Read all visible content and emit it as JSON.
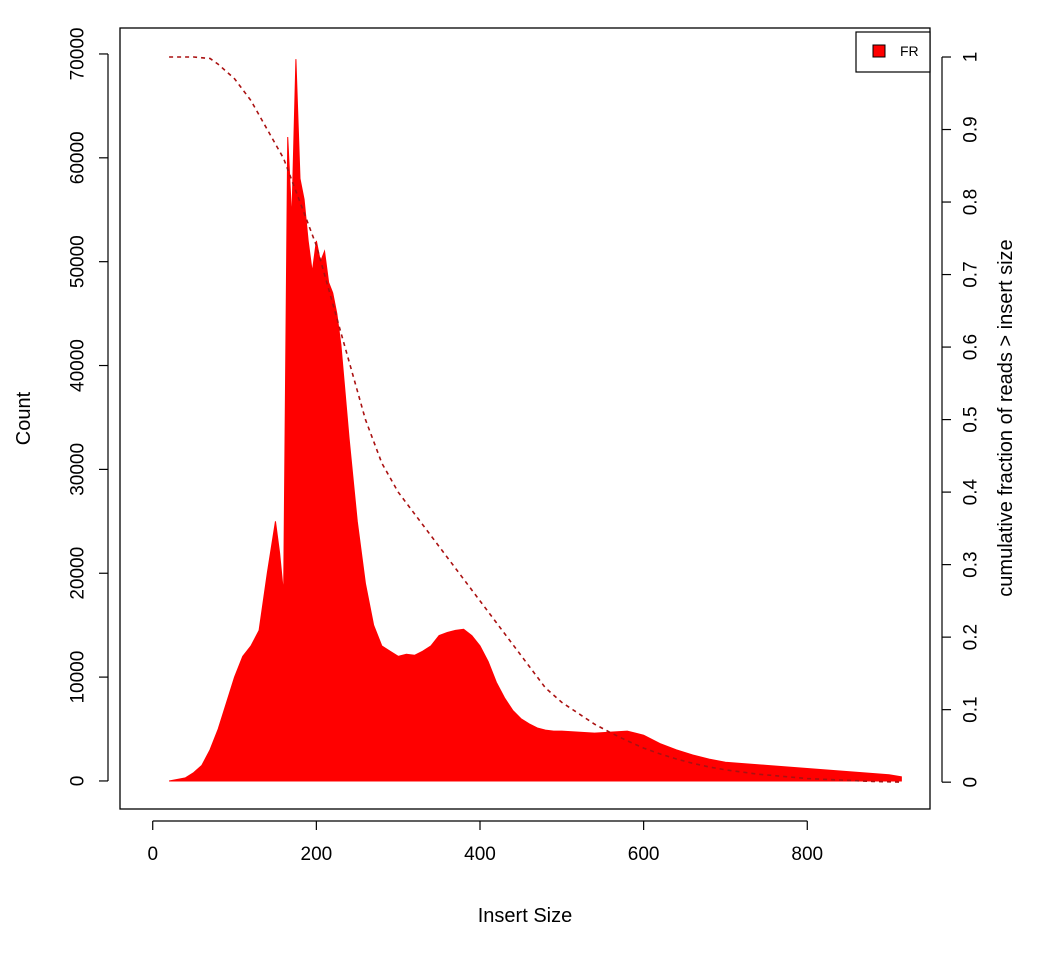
{
  "chart_data": {
    "type": "area",
    "title": "",
    "xlabel": "Insert Size",
    "ylabel": "Count",
    "y2label": "cumulative fraction of reads > insert size",
    "xlim": [
      -40,
      950
    ],
    "ylim": [
      -2700,
      72500
    ],
    "y2lim": [
      -0.037,
      1.04
    ],
    "x_ticks": [
      "0",
      "200",
      "400",
      "600",
      "800"
    ],
    "x_tick_values": [
      0,
      200,
      400,
      600,
      800
    ],
    "y_ticks": [
      "0",
      "10000",
      "20000",
      "30000",
      "40000",
      "50000",
      "60000",
      "70000"
    ],
    "y_tick_values": [
      0,
      10000,
      20000,
      30000,
      40000,
      50000,
      60000,
      70000
    ],
    "y2_ticks": [
      "0",
      "0.1",
      "0.2",
      "0.3",
      "0.4",
      "0.5",
      "0.6",
      "0.7",
      "0.8",
      "0.9",
      "1"
    ],
    "y2_tick_values": [
      0,
      0.1,
      0.2,
      0.3,
      0.4,
      0.5,
      0.6,
      0.7,
      0.8,
      0.9,
      1
    ],
    "legend": {
      "position": "top-right",
      "entries": [
        "FR"
      ]
    },
    "grid": false,
    "series": [
      {
        "name": "FR",
        "kind": "histogram",
        "color": "#ff0000",
        "x": [
          20,
          40,
          50,
          60,
          70,
          80,
          90,
          100,
          110,
          120,
          130,
          140,
          150,
          155,
          160,
          165,
          170,
          175,
          180,
          185,
          190,
          195,
          200,
          205,
          210,
          215,
          220,
          225,
          230,
          240,
          250,
          260,
          270,
          280,
          290,
          300,
          310,
          320,
          330,
          340,
          350,
          360,
          370,
          380,
          390,
          400,
          410,
          420,
          430,
          440,
          450,
          460,
          470,
          480,
          490,
          500,
          520,
          540,
          560,
          580,
          600,
          620,
          640,
          660,
          680,
          700,
          750,
          800,
          850,
          900,
          915
        ],
        "y": [
          0,
          300,
          800,
          1500,
          3000,
          5000,
          7500,
          10000,
          12000,
          13000,
          14500,
          20000,
          25000,
          22000,
          18000,
          62000,
          54000,
          69500,
          58000,
          56000,
          52000,
          49000,
          52000,
          50000,
          51000,
          48000,
          47000,
          45000,
          42000,
          33000,
          25000,
          19000,
          15000,
          13000,
          12500,
          12000,
          12200,
          12100,
          12500,
          13000,
          14000,
          14300,
          14500,
          14600,
          14000,
          13000,
          11500,
          9500,
          8000,
          6800,
          6000,
          5500,
          5100,
          4900,
          4800,
          4800,
          4700,
          4600,
          4700,
          4800,
          4400,
          3600,
          3000,
          2500,
          2100,
          1800,
          1500,
          1200,
          900,
          600,
          400
        ]
      },
      {
        "name": "cumulative",
        "kind": "line",
        "style": "dashed",
        "axis": "right",
        "color": "#aa1111",
        "x": [
          20,
          50,
          70,
          80,
          100,
          120,
          140,
          160,
          170,
          180,
          200,
          220,
          240,
          260,
          280,
          300,
          320,
          340,
          360,
          380,
          400,
          420,
          440,
          460,
          480,
          500,
          520,
          540,
          560,
          580,
          600,
          620,
          640,
          660,
          680,
          700,
          720,
          740,
          760,
          780,
          800,
          820,
          840,
          860,
          880,
          900,
          915
        ],
        "y": [
          1.0,
          1.0,
          0.998,
          0.99,
          0.97,
          0.94,
          0.9,
          0.86,
          0.83,
          0.8,
          0.74,
          0.66,
          0.58,
          0.5,
          0.44,
          0.4,
          0.37,
          0.34,
          0.31,
          0.28,
          0.25,
          0.22,
          0.19,
          0.16,
          0.13,
          0.11,
          0.095,
          0.08,
          0.068,
          0.057,
          0.047,
          0.039,
          0.032,
          0.026,
          0.021,
          0.017,
          0.014,
          0.011,
          0.009,
          0.007,
          0.005,
          0.004,
          0.003,
          0.002,
          0.001,
          0.0005,
          0
        ]
      }
    ]
  }
}
